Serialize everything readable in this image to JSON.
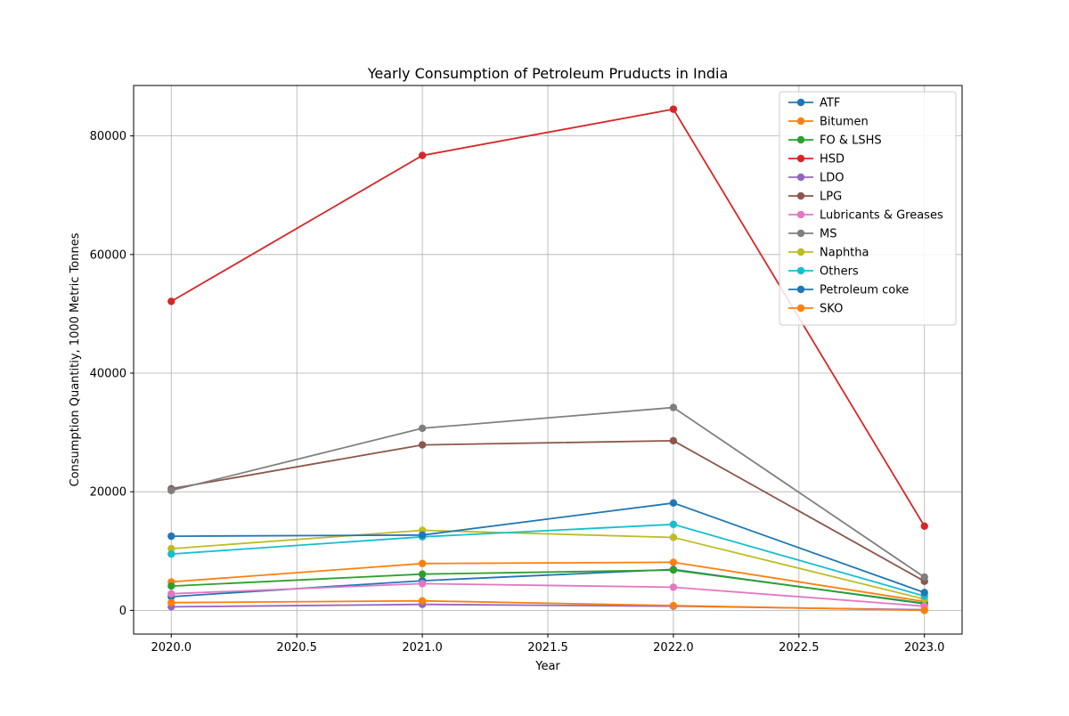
{
  "chart_data": {
    "type": "line",
    "title": "Yearly Consumption of Petroleum Pruducts in India",
    "xlabel": "Year",
    "ylabel": "Consumption Quantitiy, 1000 Metric Tonnes",
    "x": [
      2020,
      2021,
      2022,
      2023
    ],
    "xlim": [
      2019.85,
      2023.15
    ],
    "ylim": [
      -4000,
      88500
    ],
    "xticks": [
      "2020.0",
      "2020.5",
      "2021.0",
      "2021.5",
      "2022.0",
      "2022.5",
      "2023.0"
    ],
    "yticks": [
      "0",
      "20000",
      "40000",
      "60000",
      "80000"
    ],
    "grid": true,
    "legend_position": "top-right",
    "series": [
      {
        "name": "ATF",
        "color": "#1f77b4",
        "values": [
          2300,
          5000,
          6900,
          1100
        ]
      },
      {
        "name": "Bitumen",
        "color": "#ff7f0e",
        "values": [
          4800,
          7900,
          8100,
          1500
        ]
      },
      {
        "name": "FO & LSHS",
        "color": "#2ca02c",
        "values": [
          4100,
          6100,
          6800,
          1200
        ]
      },
      {
        "name": "HSD",
        "color": "#d62728",
        "values": [
          52100,
          76700,
          84500,
          14200
        ]
      },
      {
        "name": "LDO",
        "color": "#9467bd",
        "values": [
          600,
          1000,
          700,
          100
        ]
      },
      {
        "name": "LPG",
        "color": "#8c564b",
        "values": [
          20500,
          27900,
          28600,
          4900
        ]
      },
      {
        "name": "Lubricants & Greases",
        "color": "#e377c2",
        "values": [
          2800,
          4500,
          3900,
          700
        ]
      },
      {
        "name": "MS",
        "color": "#7f7f7f",
        "values": [
          20200,
          30700,
          34200,
          5600
        ]
      },
      {
        "name": "Naphtha",
        "color": "#bcbd22",
        "values": [
          10400,
          13500,
          12300,
          1900
        ]
      },
      {
        "name": "Others",
        "color": "#17becf",
        "values": [
          9500,
          12400,
          14500,
          2400
        ]
      },
      {
        "name": "Petroleum coke",
        "color": "#1f77b4",
        "values": [
          12500,
          12700,
          18100,
          3000
        ]
      },
      {
        "name": "SKO",
        "color": "#ff7f0e",
        "values": [
          1300,
          1600,
          800,
          0
        ]
      }
    ]
  }
}
